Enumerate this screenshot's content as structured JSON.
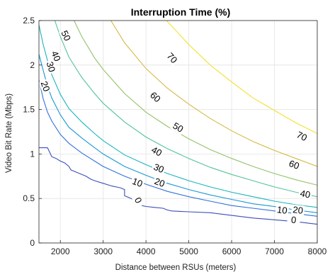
{
  "chart_data": {
    "type": "contour",
    "title": "Interruption Time (%)",
    "xlabel": "Distance between RSUs (meters)",
    "ylabel": "Video Bit Rate (Mbps)",
    "xlim": [
      1500,
      8000
    ],
    "ylim": [
      0,
      2.5
    ],
    "x_ticks": [
      2000,
      3000,
      4000,
      5000,
      6000,
      7000,
      8000
    ],
    "y_ticks": [
      0,
      0.5,
      1,
      1.5,
      2,
      2.5
    ],
    "grid": true,
    "colormap": "parula",
    "levels": [
      {
        "level": 0,
        "label": "0",
        "color": "#3c4eb8",
        "points": [
          [
            1500,
            1.07
          ],
          [
            1700,
            1.07
          ],
          [
            1750,
            1.02
          ],
          [
            1800,
            0.97
          ],
          [
            1900,
            0.95
          ],
          [
            2000,
            0.92
          ],
          [
            2100,
            0.9
          ],
          [
            2200,
            0.86
          ],
          [
            2250,
            0.82
          ],
          [
            2300,
            0.81
          ],
          [
            2400,
            0.79
          ],
          [
            2500,
            0.77
          ],
          [
            2600,
            0.75
          ],
          [
            2700,
            0.72
          ],
          [
            2800,
            0.7
          ],
          [
            3000,
            0.67
          ],
          [
            3200,
            0.64
          ],
          [
            3400,
            0.62
          ],
          [
            3500,
            0.6
          ],
          [
            3500,
            0.53
          ],
          [
            3600,
            0.51
          ],
          [
            3700,
            0.49
          ],
          [
            3750,
            0.44
          ],
          [
            3900,
            0.42
          ],
          [
            4000,
            0.41
          ],
          [
            4200,
            0.4
          ],
          [
            4400,
            0.39
          ],
          [
            4500,
            0.37
          ],
          [
            4600,
            0.36
          ],
          [
            4800,
            0.355
          ],
          [
            5000,
            0.35
          ],
          [
            5500,
            0.34
          ],
          [
            6000,
            0.31
          ],
          [
            6500,
            0.28
          ],
          [
            7000,
            0.26
          ],
          [
            7500,
            0.24
          ],
          [
            8000,
            0.21
          ]
        ],
        "label_positions": [
          [
            3820,
            0.48
          ],
          [
            7450,
            0.26
          ]
        ]
      },
      {
        "level": 10,
        "label": "10",
        "color": "#2f71dc",
        "points": [
          [
            1500,
            1.83
          ],
          [
            1600,
            1.62
          ],
          [
            1700,
            1.47
          ],
          [
            1800,
            1.37
          ],
          [
            2000,
            1.22
          ],
          [
            2200,
            1.12
          ],
          [
            2500,
            1.01
          ],
          [
            2800,
            0.92
          ],
          [
            3000,
            0.86
          ],
          [
            3500,
            0.75
          ],
          [
            4000,
            0.66
          ],
          [
            4500,
            0.58
          ],
          [
            5000,
            0.52
          ],
          [
            5500,
            0.47
          ],
          [
            6000,
            0.42
          ],
          [
            6500,
            0.39
          ],
          [
            7000,
            0.36
          ],
          [
            7500,
            0.33
          ],
          [
            8000,
            0.3
          ]
        ],
        "label_positions": [
          [
            3800,
            0.68
          ],
          [
            7180,
            0.37
          ]
        ]
      },
      {
        "level": 20,
        "label": "20",
        "color": "#1698d6",
        "points": [
          [
            1500,
            2.12
          ],
          [
            1600,
            1.94
          ],
          [
            1700,
            1.76
          ],
          [
            1800,
            1.63
          ],
          [
            2000,
            1.44
          ],
          [
            2200,
            1.3
          ],
          [
            2500,
            1.18
          ],
          [
            2800,
            1.07
          ],
          [
            3000,
            1.0
          ],
          [
            3500,
            0.86
          ],
          [
            4000,
            0.76
          ],
          [
            4500,
            0.67
          ],
          [
            5000,
            0.6
          ],
          [
            5500,
            0.54
          ],
          [
            6000,
            0.49
          ],
          [
            6500,
            0.44
          ],
          [
            7000,
            0.41
          ],
          [
            7500,
            0.37
          ],
          [
            8000,
            0.34
          ]
        ],
        "label_positions": [
          [
            1650,
            1.76
          ],
          [
            4320,
            0.68
          ],
          [
            7550,
            0.37
          ]
        ]
      },
      {
        "level": 30,
        "label": "30",
        "color": "#19b4be",
        "points": [
          [
            1500,
            2.45
          ],
          [
            1600,
            2.23
          ],
          [
            1700,
            2.05
          ],
          [
            1800,
            1.89
          ],
          [
            2000,
            1.67
          ],
          [
            2200,
            1.51
          ],
          [
            2500,
            1.36
          ],
          [
            2800,
            1.23
          ],
          [
            3000,
            1.15
          ],
          [
            3500,
            0.99
          ],
          [
            4000,
            0.88
          ],
          [
            4500,
            0.78
          ],
          [
            5000,
            0.7
          ],
          [
            5500,
            0.63
          ],
          [
            6000,
            0.57
          ],
          [
            6500,
            0.52
          ],
          [
            7000,
            0.47
          ],
          [
            7500,
            0.43
          ],
          [
            8000,
            0.4
          ]
        ],
        "label_positions": [
          [
            1780,
            1.98
          ],
          [
            4300,
            0.84
          ]
        ]
      },
      {
        "level": 40,
        "label": "40",
        "color": "#54c39a",
        "points": [
          [
            1870,
            2.5
          ],
          [
            2000,
            2.32
          ],
          [
            2200,
            2.09
          ],
          [
            2500,
            1.86
          ],
          [
            2800,
            1.68
          ],
          [
            3000,
            1.57
          ],
          [
            3500,
            1.36
          ],
          [
            4000,
            1.19
          ],
          [
            4500,
            1.06
          ],
          [
            5000,
            0.95
          ],
          [
            5500,
            0.85
          ],
          [
            6000,
            0.77
          ],
          [
            6500,
            0.7
          ],
          [
            7000,
            0.63
          ],
          [
            7500,
            0.57
          ],
          [
            8000,
            0.52
          ]
        ],
        "label_positions": [
          [
            1900,
            2.1
          ],
          [
            4250,
            1.03
          ],
          [
            7720,
            0.55
          ]
        ]
      },
      {
        "level": 50,
        "label": "50",
        "color": "#93c268",
        "points": [
          [
            2320,
            2.5
          ],
          [
            2500,
            2.32
          ],
          [
            2800,
            2.08
          ],
          [
            3000,
            1.95
          ],
          [
            3500,
            1.68
          ],
          [
            4000,
            1.47
          ],
          [
            4500,
            1.31
          ],
          [
            5000,
            1.17
          ],
          [
            5500,
            1.05
          ],
          [
            6000,
            0.95
          ],
          [
            6500,
            0.86
          ],
          [
            7000,
            0.78
          ],
          [
            7500,
            0.71
          ],
          [
            8000,
            0.65
          ]
        ],
        "label_positions": [
          [
            2130,
            2.33
          ],
          [
            4750,
            1.3
          ]
        ]
      },
      {
        "level": 60,
        "label": "60",
        "color": "#d4b944",
        "points": [
          [
            3180,
            2.5
          ],
          [
            3500,
            2.25
          ],
          [
            4000,
            1.96
          ],
          [
            4500,
            1.74
          ],
          [
            5000,
            1.56
          ],
          [
            5500,
            1.4
          ],
          [
            6000,
            1.26
          ],
          [
            6500,
            1.14
          ],
          [
            7000,
            1.04
          ],
          [
            7500,
            0.95
          ],
          [
            8000,
            0.86
          ]
        ],
        "label_positions": [
          [
            4220,
            1.64
          ],
          [
            7460,
            0.88
          ]
        ]
      },
      {
        "level": 70,
        "label": "70",
        "color": "#f2e12e",
        "points": [
          [
            4480,
            2.5
          ],
          [
            5000,
            2.23
          ],
          [
            5500,
            2.0
          ],
          [
            6000,
            1.81
          ],
          [
            6500,
            1.63
          ],
          [
            7000,
            1.49
          ],
          [
            7500,
            1.35
          ],
          [
            8000,
            1.23
          ]
        ],
        "label_positions": [
          [
            4610,
            2.08
          ],
          [
            7640,
            1.2
          ]
        ]
      }
    ]
  }
}
